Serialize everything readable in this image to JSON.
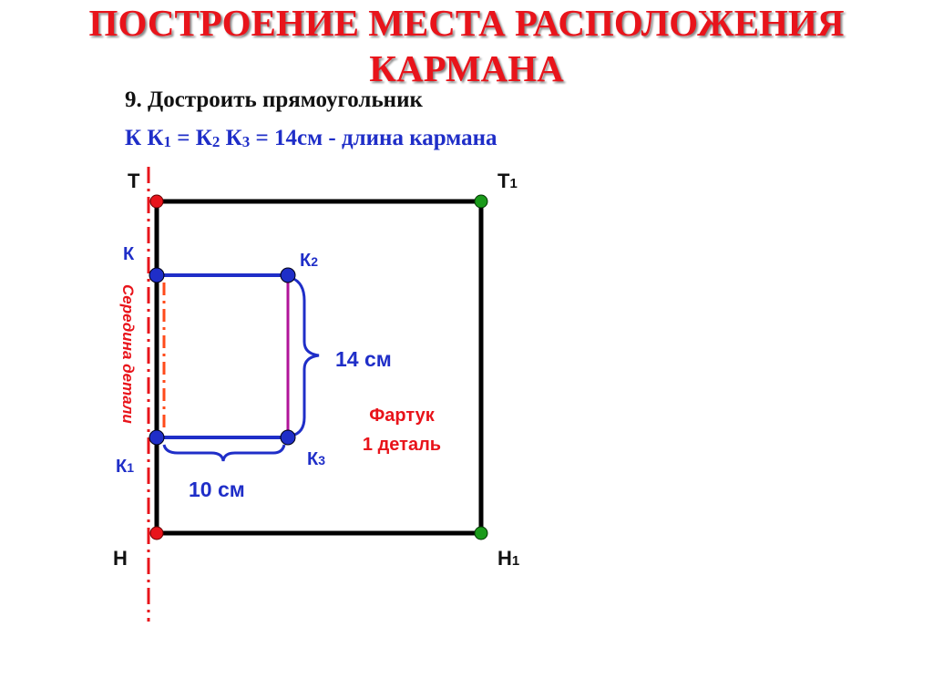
{
  "title": {
    "line1": "ПОСТРОЕНИЕ МЕСТА РАСПОЛОЖЕНИЯ",
    "line2": "КАРМАНА"
  },
  "step": "9. Достроить прямоугольник",
  "formula": {
    "a": "К К",
    "a_sub": "1",
    "b": " = К",
    "b_sub": "2",
    "c": " К",
    "c_sub": "3",
    "d": " = 14см - длина кармана"
  },
  "points": {
    "T": "Т",
    "T1": "Т",
    "T1_sub": "1",
    "H": "Н",
    "H1": "Н",
    "H1_sub": "1",
    "K": "К",
    "K1": "К",
    "K1_sub": "1",
    "K2": "К",
    "K2_sub": "2",
    "K3": "К",
    "K3_sub": "3"
  },
  "labels": {
    "height": "14 см",
    "width": "10 см",
    "center_line": "Середина детали",
    "part_name": "Фартук",
    "part_count": "1 деталь"
  },
  "colors": {
    "title": "#e8141b",
    "blue": "#1f2ec8",
    "magenta": "#b0149a",
    "red": "#e8141b",
    "green": "#1a9a1a"
  }
}
